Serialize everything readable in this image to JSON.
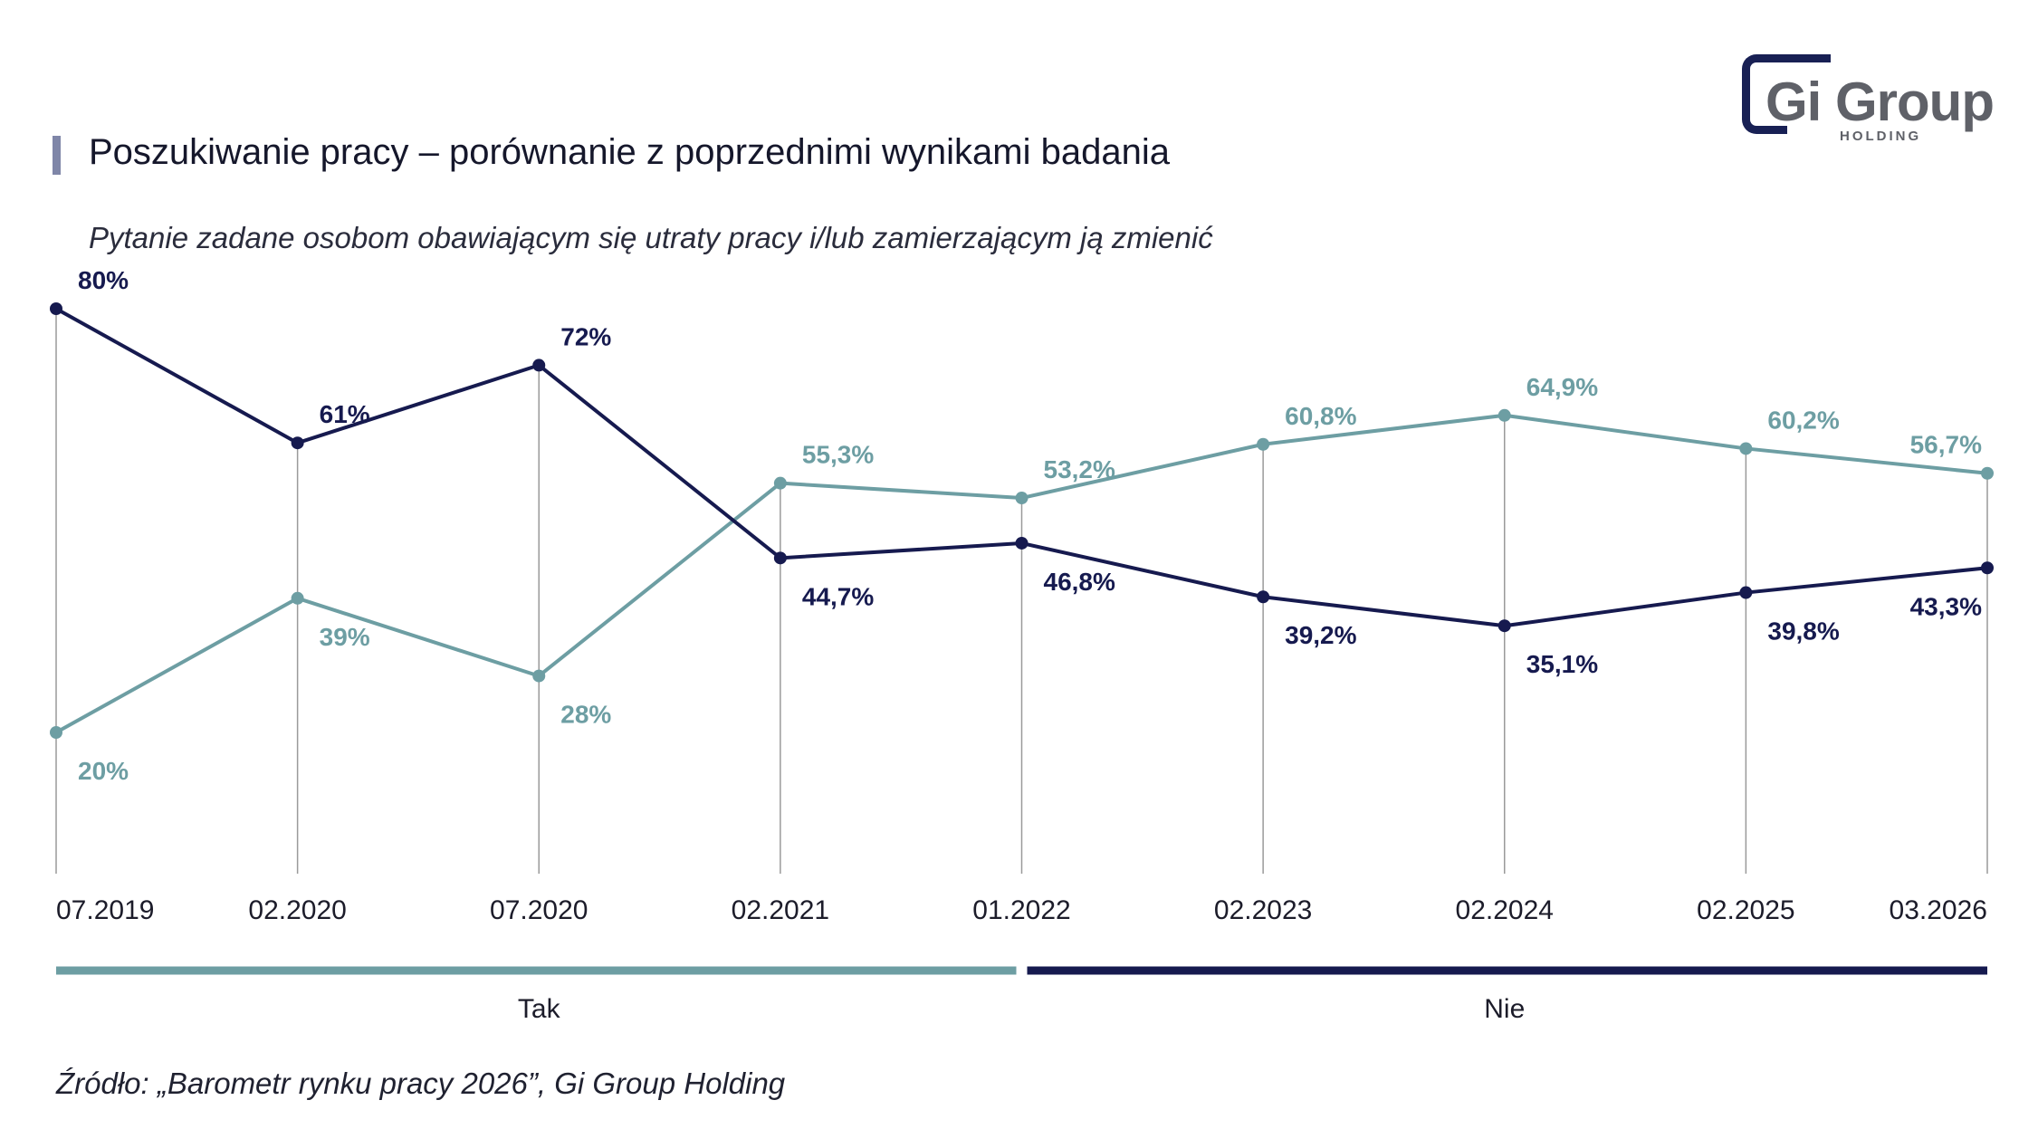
{
  "header": {
    "title": "Poszukiwanie pracy – porównanie z poprzednimi wynikami badania",
    "subtitle": "Pytanie zadane osobom obawiającym się utraty pracy i/lub zamierzającym ją zmienić"
  },
  "logo": {
    "name": "Gi Group",
    "sub": "HOLDING"
  },
  "footer": {
    "source": "Źródło: „Barometr rynku pracy 2026”, Gi Group Holding"
  },
  "colors": {
    "tak": "#6d9ea3",
    "nie": "#161a4f",
    "axis": "#9a9a9a"
  },
  "chart_data": {
    "type": "line",
    "categories": [
      "07.2019",
      "02.2020",
      "07.2020",
      "02.2021",
      "01.2022",
      "02.2023",
      "02.2024",
      "02.2025",
      "03.2026"
    ],
    "ylim": [
      0,
      100
    ],
    "series": [
      {
        "name": "Tak",
        "color": "#6d9ea3",
        "values": [
          20,
          39,
          28,
          55.3,
          53.2,
          60.8,
          64.9,
          60.2,
          56.7
        ],
        "labels": [
          "20%",
          "39%",
          "28%",
          "55,3%",
          "53,2%",
          "60,8%",
          "64,9%",
          "60,2%",
          "56,7%"
        ]
      },
      {
        "name": "Nie",
        "color": "#161a4f",
        "values": [
          80,
          61,
          72,
          44.7,
          46.8,
          39.2,
          35.1,
          39.8,
          43.3
        ],
        "labels": [
          "80%",
          "61%",
          "72%",
          "44,7%",
          "46,8%",
          "39,2%",
          "35,1%",
          "39,8%",
          "43,3%"
        ]
      }
    ],
    "legend": "bottom",
    "grid": false
  }
}
